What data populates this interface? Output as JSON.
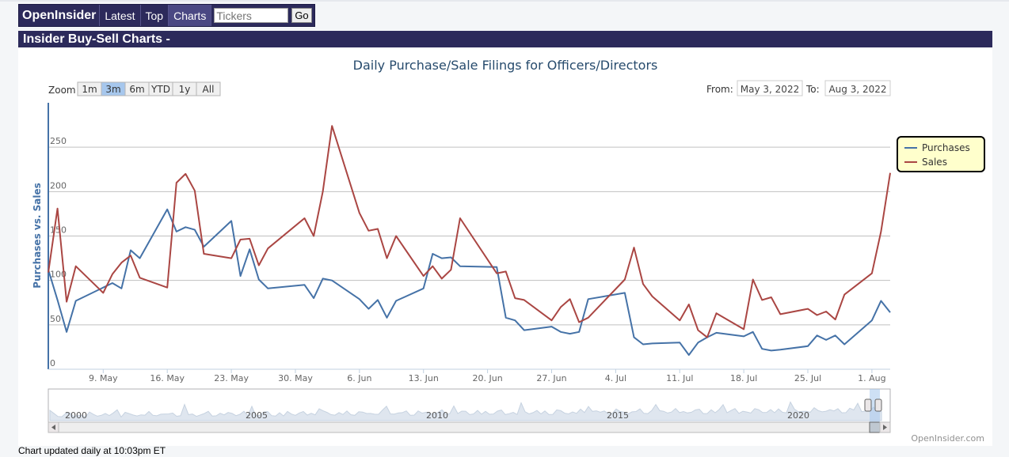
{
  "nav": {
    "logo": "OpenInsider",
    "items": [
      "Latest",
      "Top",
      "Charts"
    ],
    "active_item": "Charts",
    "search": {
      "placeholder": "Tickers",
      "button": "Go"
    }
  },
  "section_title": "Insider Buy-Sell Charts -",
  "footer_note": "Chart updated daily at 10:03pm ET",
  "credit": "OpenInsider.com",
  "controls": {
    "zoom_label": "Zoom",
    "zoom_buttons": [
      "1m",
      "3m",
      "6m",
      "YTD",
      "1y",
      "All"
    ],
    "zoom_selected": "3m",
    "from_label": "From:",
    "from_value": "May 3, 2022",
    "to_label": "To:",
    "to_value": "Aug 3, 2022"
  },
  "navigator": {
    "year_labels": [
      "2000",
      "2005",
      "2010",
      "2015",
      "2020"
    ]
  },
  "colors": {
    "purchases": "#4572a7",
    "sales": "#aa4643",
    "navy": "#2c2a5b",
    "legend_bg": "#ffffcc"
  },
  "chart_data": {
    "type": "line",
    "title": "Daily Purchase/Sale Filings for Officers/Directors",
    "ylabel": "Purchases vs. Sales",
    "ylim": [
      0,
      300
    ],
    "y_ticks": [
      0,
      50,
      100,
      150,
      200,
      250
    ],
    "x_ticks": [
      {
        "label": "9. May",
        "date": "2022-05-09"
      },
      {
        "label": "16. May",
        "date": "2022-05-16"
      },
      {
        "label": "23. May",
        "date": "2022-05-23"
      },
      {
        "label": "30. May",
        "date": "2022-05-30"
      },
      {
        "label": "6. Jun",
        "date": "2022-06-06"
      },
      {
        "label": "13. Jun",
        "date": "2022-06-13"
      },
      {
        "label": "20. Jun",
        "date": "2022-06-20"
      },
      {
        "label": "27. Jun",
        "date": "2022-06-27"
      },
      {
        "label": "4. Jul",
        "date": "2022-07-04"
      },
      {
        "label": "11. Jul",
        "date": "2022-07-11"
      },
      {
        "label": "18. Jul",
        "date": "2022-07-18"
      },
      {
        "label": "25. Jul",
        "date": "2022-07-25"
      },
      {
        "label": "1. Aug",
        "date": "2022-08-01"
      }
    ],
    "x_range": [
      "2022-05-03",
      "2022-08-03"
    ],
    "legend": {
      "position": "right"
    },
    "series": [
      {
        "name": "Purchases",
        "color": "#4572a7",
        "points": [
          [
            "2022-05-03",
            112
          ],
          [
            "2022-05-04",
            78
          ],
          [
            "2022-05-05",
            42
          ],
          [
            "2022-05-06",
            77
          ],
          [
            "2022-05-09",
            92
          ],
          [
            "2022-05-10",
            97
          ],
          [
            "2022-05-11",
            91
          ],
          [
            "2022-05-12",
            134
          ],
          [
            "2022-05-13",
            125
          ],
          [
            "2022-05-16",
            180
          ],
          [
            "2022-05-17",
            155
          ],
          [
            "2022-05-18",
            160
          ],
          [
            "2022-05-19",
            157
          ],
          [
            "2022-05-20",
            138
          ],
          [
            "2022-05-23",
            167
          ],
          [
            "2022-05-24",
            105
          ],
          [
            "2022-05-25",
            135
          ],
          [
            "2022-05-26",
            101
          ],
          [
            "2022-05-27",
            91
          ],
          [
            "2022-05-31",
            95
          ],
          [
            "2022-06-01",
            80
          ],
          [
            "2022-06-02",
            102
          ],
          [
            "2022-06-03",
            100
          ],
          [
            "2022-06-06",
            79
          ],
          [
            "2022-06-07",
            68
          ],
          [
            "2022-06-08",
            78
          ],
          [
            "2022-06-09",
            58
          ],
          [
            "2022-06-10",
            77
          ],
          [
            "2022-06-13",
            91
          ],
          [
            "2022-06-14",
            130
          ],
          [
            "2022-06-15",
            125
          ],
          [
            "2022-06-16",
            126
          ],
          [
            "2022-06-17",
            116
          ],
          [
            "2022-06-21",
            115
          ],
          [
            "2022-06-22",
            58
          ],
          [
            "2022-06-23",
            55
          ],
          [
            "2022-06-24",
            44
          ],
          [
            "2022-06-27",
            48
          ],
          [
            "2022-06-28",
            42
          ],
          [
            "2022-06-29",
            40
          ],
          [
            "2022-06-30",
            42
          ],
          [
            "2022-07-01",
            79
          ],
          [
            "2022-07-05",
            86
          ],
          [
            "2022-07-06",
            36
          ],
          [
            "2022-07-07",
            28
          ],
          [
            "2022-07-08",
            29
          ],
          [
            "2022-07-11",
            30
          ],
          [
            "2022-07-12",
            16
          ],
          [
            "2022-07-13",
            30
          ],
          [
            "2022-07-14",
            36
          ],
          [
            "2022-07-15",
            41
          ],
          [
            "2022-07-18",
            37
          ],
          [
            "2022-07-19",
            42
          ],
          [
            "2022-07-20",
            23
          ],
          [
            "2022-07-21",
            21
          ],
          [
            "2022-07-22",
            22
          ],
          [
            "2022-07-25",
            26
          ],
          [
            "2022-07-26",
            38
          ],
          [
            "2022-07-27",
            33
          ],
          [
            "2022-07-28",
            38
          ],
          [
            "2022-07-29",
            28
          ],
          [
            "2022-08-01",
            55
          ],
          [
            "2022-08-02",
            77
          ],
          [
            "2022-08-03",
            64
          ]
        ]
      },
      {
        "name": "Sales",
        "color": "#aa4643",
        "points": [
          [
            "2022-05-03",
            109
          ],
          [
            "2022-05-04",
            181
          ],
          [
            "2022-05-05",
            76
          ],
          [
            "2022-05-06",
            116
          ],
          [
            "2022-05-09",
            86
          ],
          [
            "2022-05-10",
            107
          ],
          [
            "2022-05-11",
            120
          ],
          [
            "2022-05-12",
            128
          ],
          [
            "2022-05-13",
            103
          ],
          [
            "2022-05-16",
            92
          ],
          [
            "2022-05-17",
            210
          ],
          [
            "2022-05-18",
            220
          ],
          [
            "2022-05-19",
            201
          ],
          [
            "2022-05-20",
            130
          ],
          [
            "2022-05-23",
            125
          ],
          [
            "2022-05-24",
            146
          ],
          [
            "2022-05-25",
            147
          ],
          [
            "2022-05-26",
            117
          ],
          [
            "2022-05-27",
            136
          ],
          [
            "2022-05-31",
            170
          ],
          [
            "2022-06-01",
            150
          ],
          [
            "2022-06-02",
            200
          ],
          [
            "2022-06-03",
            274
          ],
          [
            "2022-06-06",
            176
          ],
          [
            "2022-06-07",
            156
          ],
          [
            "2022-06-08",
            158
          ],
          [
            "2022-06-09",
            125
          ],
          [
            "2022-06-10",
            150
          ],
          [
            "2022-06-13",
            105
          ],
          [
            "2022-06-14",
            116
          ],
          [
            "2022-06-15",
            102
          ],
          [
            "2022-06-16",
            112
          ],
          [
            "2022-06-17",
            170
          ],
          [
            "2022-06-21",
            108
          ],
          [
            "2022-06-22",
            110
          ],
          [
            "2022-06-23",
            80
          ],
          [
            "2022-06-24",
            78
          ],
          [
            "2022-06-27",
            55
          ],
          [
            "2022-06-28",
            70
          ],
          [
            "2022-06-29",
            79
          ],
          [
            "2022-06-30",
            53
          ],
          [
            "2022-07-01",
            58
          ],
          [
            "2022-07-05",
            101
          ],
          [
            "2022-07-06",
            137
          ],
          [
            "2022-07-07",
            96
          ],
          [
            "2022-07-08",
            82
          ],
          [
            "2022-07-11",
            55
          ],
          [
            "2022-07-12",
            73
          ],
          [
            "2022-07-13",
            44
          ],
          [
            "2022-07-14",
            36
          ],
          [
            "2022-07-15",
            63
          ],
          [
            "2022-07-18",
            45
          ],
          [
            "2022-07-19",
            101
          ],
          [
            "2022-07-20",
            78
          ],
          [
            "2022-07-21",
            81
          ],
          [
            "2022-07-22",
            62
          ],
          [
            "2022-07-25",
            68
          ],
          [
            "2022-07-26",
            61
          ],
          [
            "2022-07-27",
            65
          ],
          [
            "2022-07-28",
            56
          ],
          [
            "2022-07-29",
            84
          ],
          [
            "2022-08-01",
            108
          ],
          [
            "2022-08-02",
            155
          ],
          [
            "2022-08-03",
            221
          ]
        ]
      }
    ]
  }
}
